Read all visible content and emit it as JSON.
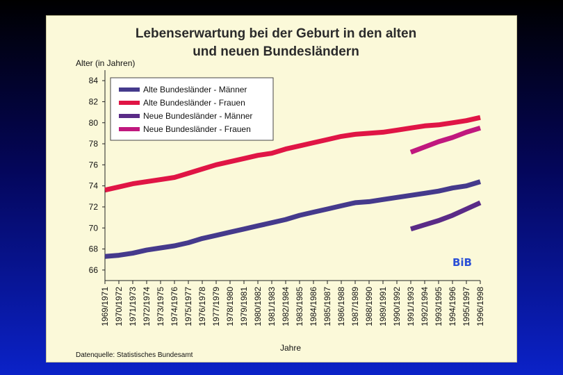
{
  "chart_data": {
    "type": "line",
    "title_lines": [
      "Lebenserwartung bei der Geburt in den alten",
      "und neuen Bundesländern"
    ],
    "ylabel": "Alter (in Jahren)",
    "xlabel": "Jahre",
    "source": "Datenquelle: Statistisches Bundesamt",
    "logo": "BiB",
    "ylim": [
      65,
      85
    ],
    "yticks": [
      66,
      68,
      70,
      72,
      74,
      76,
      78,
      80,
      82,
      84
    ],
    "grid": false,
    "legend_position": "top-left",
    "categories": [
      "1969/1971",
      "1970/1972",
      "1971/1973",
      "1972/1974",
      "1973/1975",
      "1974/1976",
      "1975/1977",
      "1976/1978",
      "1977/1979",
      "1978/1980",
      "1979/1981",
      "1980/1982",
      "1981/1983",
      "1982/1984",
      "1983/1985",
      "1984/1986",
      "1985/1987",
      "1986/1988",
      "1987/1989",
      "1988/1990",
      "1989/1991",
      "1990/1992",
      "1991/1993",
      "1992/1994",
      "1993/1995",
      "1994/1996",
      "1995/1997",
      "1996/1998"
    ],
    "series": [
      {
        "name": "Alte Bundesländer - Männer",
        "color": "#453a8c",
        "values": [
          67.3,
          67.4,
          67.6,
          67.9,
          68.1,
          68.3,
          68.6,
          69.0,
          69.3,
          69.6,
          69.9,
          70.2,
          70.5,
          70.8,
          71.2,
          71.5,
          71.8,
          72.1,
          72.4,
          72.5,
          72.7,
          72.9,
          73.1,
          73.3,
          73.5,
          73.8,
          74.0,
          74.4
        ]
      },
      {
        "name": "Alte Bundesländer - Frauen",
        "color": "#e01545",
        "values": [
          73.6,
          73.9,
          74.2,
          74.4,
          74.6,
          74.8,
          75.2,
          75.6,
          76.0,
          76.3,
          76.6,
          76.9,
          77.1,
          77.5,
          77.8,
          78.1,
          78.4,
          78.7,
          78.9,
          79.0,
          79.1,
          79.3,
          79.5,
          79.7,
          79.8,
          80.0,
          80.2,
          80.5
        ]
      },
      {
        "name": "Neue Bundesländer - Männer",
        "color": "#5a2b87",
        "values": [
          null,
          null,
          null,
          null,
          null,
          null,
          null,
          null,
          null,
          null,
          null,
          null,
          null,
          null,
          null,
          null,
          null,
          null,
          null,
          null,
          null,
          null,
          69.9,
          70.3,
          70.7,
          71.2,
          71.8,
          72.4
        ]
      },
      {
        "name": "Neue Bundesländer - Frauen",
        "color": "#c0187e",
        "values": [
          null,
          null,
          null,
          null,
          null,
          null,
          null,
          null,
          null,
          null,
          null,
          null,
          null,
          null,
          null,
          null,
          null,
          null,
          null,
          null,
          null,
          null,
          77.2,
          77.7,
          78.2,
          78.6,
          79.1,
          79.5
        ]
      }
    ]
  }
}
